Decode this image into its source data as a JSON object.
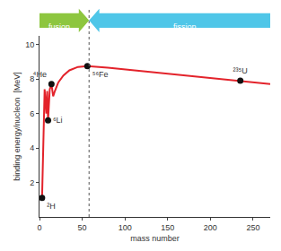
{
  "chart_data": {
    "type": "line",
    "x_label": "mass number",
    "y_label": "binding energy/nucleon  [MeV]",
    "curve": {
      "x": [
        3,
        6,
        8,
        9,
        10,
        12,
        14,
        16,
        18,
        22,
        28,
        35,
        45,
        56,
        80,
        110,
        140,
        170,
        200,
        235,
        270
      ],
      "values": [
        1.1,
        7.4,
        6.0,
        7.3,
        5.6,
        7.4,
        7.7,
        7.0,
        7.3,
        7.8,
        8.2,
        8.5,
        8.7,
        8.75,
        8.65,
        8.5,
        8.35,
        8.2,
        8.05,
        7.9,
        7.7
      ],
      "color": "#e3232b"
    },
    "points": {
      "labels": [
        "²H",
        "⁶Li",
        "⁴He",
        "⁵⁶Fe",
        "²³⁵U"
      ],
      "x": [
        3,
        10,
        14,
        56,
        235
      ],
      "values": [
        1.1,
        5.6,
        7.7,
        8.75,
        7.9
      ],
      "color": "#111111"
    },
    "divider_x": 58,
    "regions": [
      {
        "text": "fusion",
        "from": 0,
        "to": 58,
        "color": "#8dc63f"
      },
      {
        "text": "fission",
        "from": 270,
        "to": 58,
        "color": "#4fc6e8"
      }
    ],
    "xlim": [
      0,
      270
    ],
    "xticks": [
      0,
      50,
      100,
      150,
      200,
      250
    ],
    "ylim": [
      0,
      10.5
    ],
    "yticks": [
      2,
      4,
      6,
      8,
      10
    ],
    "grid": false
  }
}
